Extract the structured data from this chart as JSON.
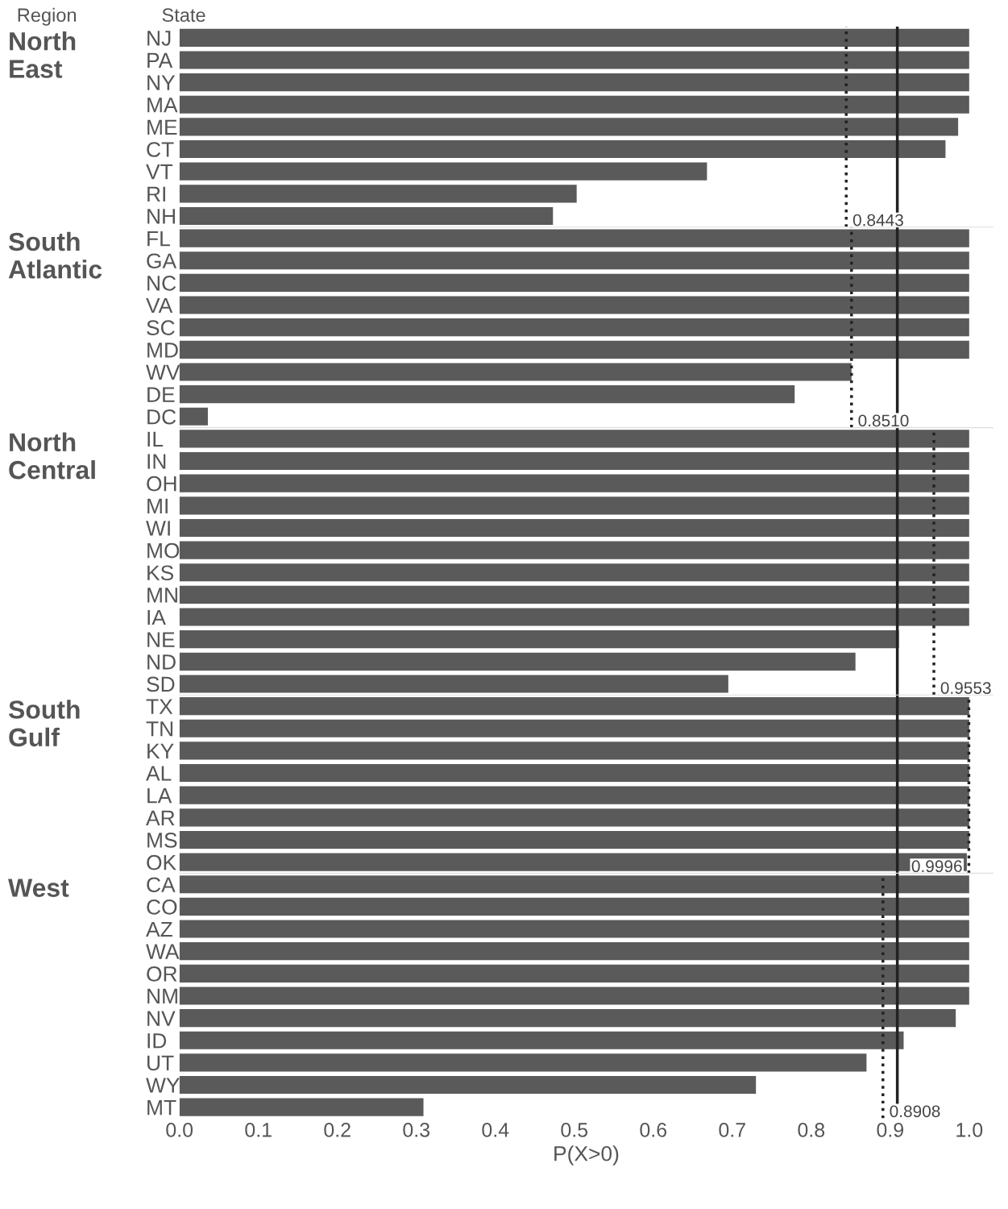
{
  "chart_data": [
    {
      "type": "bar",
      "orientation": "horizontal",
      "title": "North East",
      "annotations": [
        "Region",
        "State"
      ],
      "categories": [
        "NJ",
        "PA",
        "NY",
        "MA",
        "ME",
        "CT",
        "VT",
        "RI",
        "NH"
      ],
      "values": [
        1.0,
        1.0,
        1.0,
        1.0,
        0.986,
        0.97,
        0.668,
        0.503,
        0.473
      ],
      "color": "#5a5a5a",
      "xlim": [
        0,
        1.03
      ],
      "xticks": [
        0.0,
        0.1,
        0.2,
        0.3,
        0.4,
        0.5,
        0.6,
        0.7,
        0.8,
        0.9,
        1.0
      ],
      "tick_labels": "y",
      "grid": false,
      "legend": false,
      "ref_lines": [
        {
          "axis": "x",
          "value": 0.8443,
          "label": "0.8443",
          "line_style": "dotted",
          "color": "#222222"
        },
        {
          "axis": "x",
          "value": 0.909,
          "label": null,
          "line_style": "solid",
          "color": "#222222"
        }
      ]
    },
    {
      "type": "bar",
      "orientation": "horizontal",
      "title": "South Atlantic",
      "categories": [
        "FL",
        "GA",
        "NC",
        "VA",
        "SC",
        "MD",
        "WV",
        "DE",
        "DC"
      ],
      "values": [
        1.0,
        1.0,
        1.0,
        1.0,
        1.0,
        1.0,
        0.851,
        0.779,
        0.036
      ],
      "color": "#5a5a5a",
      "xlim": [
        0,
        1.03
      ],
      "xticks": [
        0.0,
        0.1,
        0.2,
        0.3,
        0.4,
        0.5,
        0.6,
        0.7,
        0.8,
        0.9,
        1.0
      ],
      "tick_labels": "y",
      "grid": false,
      "legend": false,
      "ref_lines": [
        {
          "axis": "x",
          "value": 0.851,
          "label": "0.8510",
          "line_style": "dotted",
          "color": "#222222"
        },
        {
          "axis": "x",
          "value": 0.909,
          "label": null,
          "line_style": "solid",
          "color": "#222222"
        }
      ]
    },
    {
      "type": "bar",
      "orientation": "horizontal",
      "title": "North Central",
      "categories": [
        "IL",
        "IN",
        "OH",
        "MI",
        "WI",
        "MO",
        "KS",
        "MN",
        "IA",
        "NE",
        "ND",
        "SD"
      ],
      "values": [
        1.0,
        1.0,
        1.0,
        1.0,
        1.0,
        1.0,
        1.0,
        1.0,
        1.0,
        0.911,
        0.856,
        0.695
      ],
      "color": "#5a5a5a",
      "xlim": [
        0,
        1.03
      ],
      "xticks": [
        0.0,
        0.1,
        0.2,
        0.3,
        0.4,
        0.5,
        0.6,
        0.7,
        0.8,
        0.9,
        1.0
      ],
      "tick_labels": "y",
      "grid": false,
      "legend": false,
      "ref_lines": [
        {
          "axis": "x",
          "value": 0.9553,
          "label": "0.9553",
          "line_style": "dotted",
          "color": "#222222"
        },
        {
          "axis": "x",
          "value": 0.909,
          "label": null,
          "line_style": "solid",
          "color": "#222222"
        }
      ]
    },
    {
      "type": "bar",
      "orientation": "horizontal",
      "title": "South Gulf",
      "categories": [
        "TX",
        "TN",
        "KY",
        "AL",
        "LA",
        "AR",
        "MS",
        "OK"
      ],
      "values": [
        1.0,
        1.0,
        1.0,
        1.0,
        1.0,
        1.0,
        1.0,
        0.997
      ],
      "color": "#5a5a5a",
      "xlim": [
        0,
        1.03
      ],
      "xticks": [
        0.0,
        0.1,
        0.2,
        0.3,
        0.4,
        0.5,
        0.6,
        0.7,
        0.8,
        0.9,
        1.0
      ],
      "tick_labels": "y",
      "grid": false,
      "legend": false,
      "ref_lines": [
        {
          "axis": "x",
          "value": 0.9996,
          "label": "0.9996",
          "line_style": "dotted",
          "color": "#222222"
        },
        {
          "axis": "x",
          "value": 0.909,
          "label": null,
          "line_style": "solid",
          "color": "#222222"
        }
      ]
    },
    {
      "type": "bar",
      "orientation": "horizontal",
      "title": "West",
      "xlabel": "P(X>0)",
      "categories": [
        "CA",
        "CO",
        "AZ",
        "WA",
        "OR",
        "NM",
        "NV",
        "ID",
        "UT",
        "WY",
        "MT"
      ],
      "values": [
        1.0,
        1.0,
        1.0,
        1.0,
        1.0,
        1.0,
        0.983,
        0.917,
        0.87,
        0.73,
        0.309
      ],
      "color": "#5a5a5a",
      "xlim": [
        0,
        1.03
      ],
      "xticks": [
        {
          "value": 0,
          "label": "0.0"
        },
        0.1,
        0.2,
        0.3,
        0.4,
        0.5,
        0.6,
        0.7,
        0.8,
        0.9,
        {
          "value": 1,
          "label": "1.0"
        }
      ],
      "grid": false,
      "legend": false,
      "ref_lines": [
        {
          "axis": "x",
          "value": 0.8908,
          "label": "0.8908",
          "line_style": "dotted",
          "color": "#222222"
        },
        {
          "axis": "x",
          "value": 0.909,
          "label": null,
          "line_style": "solid",
          "color": "#222222"
        }
      ]
    }
  ]
}
